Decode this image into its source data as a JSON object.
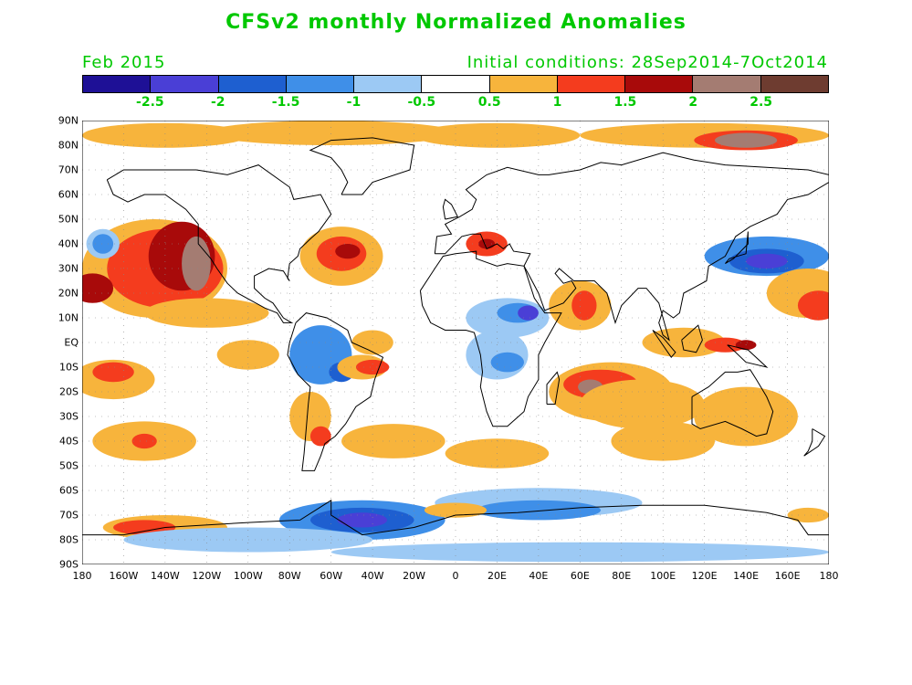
{
  "title": "CFSv2 monthly Normalized Anomalies",
  "valid_month": "Feb 2015",
  "initial_conditions": "Initial conditions: 28Sep2014-7Oct2014",
  "colorbar": {
    "colors": [
      "#1e1096",
      "#4a3fd6",
      "#1e5fd0",
      "#3f8fe8",
      "#9cc9f4",
      "#ffffff",
      "#f7b43c",
      "#f43c1e",
      "#a80a0a",
      "#a47c72",
      "#6e3c30"
    ],
    "tick_labels": [
      "-2.5",
      "-2",
      "-1.5",
      "-1",
      "-0.5",
      "0.5",
      "1",
      "1.5",
      "2",
      "2.5"
    ]
  },
  "lat_labels": [
    "90N",
    "80N",
    "70N",
    "60N",
    "50N",
    "40N",
    "30N",
    "20N",
    "10N",
    "EQ",
    "10S",
    "20S",
    "30S",
    "40S",
    "50S",
    "60S",
    "70S",
    "80S",
    "90S"
  ],
  "lon_labels": [
    "180",
    "160W",
    "140W",
    "120W",
    "100W",
    "80W",
    "60W",
    "40W",
    "20W",
    "0",
    "20E",
    "40E",
    "60E",
    "80E",
    "100E",
    "120E",
    "140E",
    "160E",
    "180"
  ],
  "chart_data": {
    "type": "heatmap",
    "title": "CFSv2 monthly Normalized Anomalies",
    "x_range": [
      -180,
      180
    ],
    "y_range": [
      -90,
      90
    ],
    "colorbar_levels": [
      -2.5,
      -2,
      -1.5,
      -1,
      -0.5,
      0.5,
      1,
      1.5,
      2,
      2.5
    ],
    "grid": true,
    "legend": "top"
  }
}
